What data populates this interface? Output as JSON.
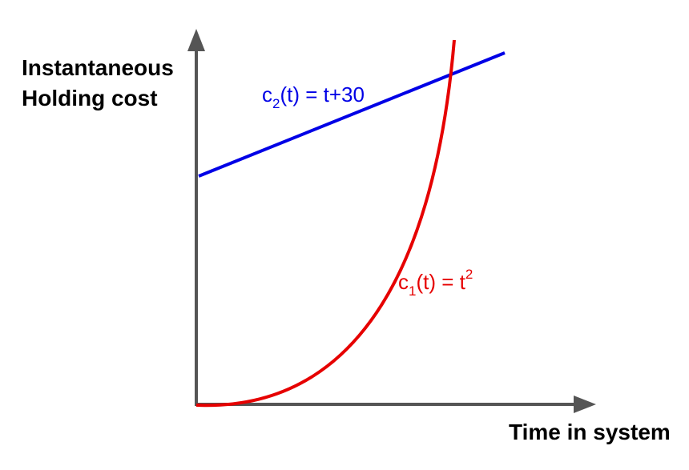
{
  "axes": {
    "y_label": [
      "Instantaneous",
      "Holding cost"
    ],
    "x_label": "Time in system"
  },
  "curves": [
    {
      "base": "c",
      "sub": "2",
      "rest": "(t) = t+30"
    },
    {
      "base": "c",
      "sub": "1",
      "rest": "(t) =  t",
      "sup": "2"
    }
  ]
}
